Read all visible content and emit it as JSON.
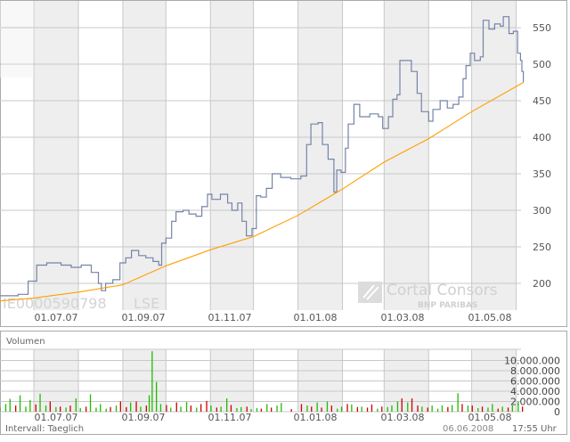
{
  "colors": {
    "price_line": "#7483a8",
    "moving_average": "#ff9f00",
    "volume_up": "#22bb00",
    "volume_down": "#cc0000",
    "band": "#eeeeee",
    "grid": "#c8c8c8"
  },
  "watermark": {
    "isin": "IE0000590798",
    "exchange": "LSE",
    "logo_main": "Cortal Consors",
    "logo_sub": "BNP PARIBAS"
  },
  "volume_panel": {
    "title": "Volumen"
  },
  "footer": {
    "interval": "Intervall: Taeglich",
    "date": "06.06.2008",
    "time": "17:55 Uhr"
  },
  "chart_data": [
    {
      "type": "line",
      "x_type": "date",
      "xlim": [
        "2007-06-07",
        "2008-06-06"
      ],
      "ylim": [
        170,
        580
      ],
      "x_ticks": [
        "01.07.07",
        "01.09.07",
        "01.11.07",
        "01.01.08",
        "01.03.08",
        "01.05.08"
      ],
      "y_ticks": [
        "200",
        "250",
        "300",
        "350",
        "400",
        "450",
        "500",
        "550"
      ],
      "grid": true,
      "series": [
        {
          "key": "price",
          "points": [
            [
              "2007-06-07",
              183
            ],
            [
              "2007-06-20",
              185
            ],
            [
              "2007-06-27",
              203
            ],
            [
              "2007-07-03",
              225
            ],
            [
              "2007-07-10",
              228
            ],
            [
              "2007-07-20",
              225
            ],
            [
              "2007-07-27",
              222
            ],
            [
              "2007-08-03",
              225
            ],
            [
              "2007-08-10",
              215
            ],
            [
              "2007-08-15",
              200
            ],
            [
              "2007-08-17",
              190
            ],
            [
              "2007-08-20",
              200
            ],
            [
              "2007-08-25",
              205
            ],
            [
              "2007-08-30",
              228
            ],
            [
              "2007-09-03",
              235
            ],
            [
              "2007-09-07",
              245
            ],
            [
              "2007-09-12",
              238
            ],
            [
              "2007-09-17",
              235
            ],
            [
              "2007-09-22",
              230
            ],
            [
              "2007-09-26",
              225
            ],
            [
              "2007-09-28",
              255
            ],
            [
              "2007-10-01",
              262
            ],
            [
              "2007-10-05",
              285
            ],
            [
              "2007-10-08",
              298
            ],
            [
              "2007-10-13",
              300
            ],
            [
              "2007-10-17",
              295
            ],
            [
              "2007-10-22",
              292
            ],
            [
              "2007-10-26",
              305
            ],
            [
              "2007-10-30",
              322
            ],
            [
              "2007-11-02",
              315
            ],
            [
              "2007-11-08",
              322
            ],
            [
              "2007-11-13",
              310
            ],
            [
              "2007-11-16",
              300
            ],
            [
              "2007-11-20",
              310
            ],
            [
              "2007-11-23",
              285
            ],
            [
              "2007-11-26",
              265
            ],
            [
              "2007-11-30",
              275
            ],
            [
              "2007-12-03",
              320
            ],
            [
              "2007-12-06",
              318
            ],
            [
              "2007-12-10",
              330
            ],
            [
              "2007-12-14",
              350
            ],
            [
              "2007-12-20",
              345
            ],
            [
              "2007-12-27",
              343
            ],
            [
              "2008-01-03",
              347
            ],
            [
              "2008-01-07",
              390
            ],
            [
              "2008-01-10",
              418
            ],
            [
              "2008-01-15",
              420
            ],
            [
              "2008-01-18",
              390
            ],
            [
              "2008-01-22",
              370
            ],
            [
              "2008-01-26",
              325
            ],
            [
              "2008-01-28",
              355
            ],
            [
              "2008-01-31",
              352
            ],
            [
              "2008-02-03",
              385
            ],
            [
              "2008-02-05",
              418
            ],
            [
              "2008-02-09",
              445
            ],
            [
              "2008-02-13",
              428
            ],
            [
              "2008-02-20",
              432
            ],
            [
              "2008-02-26",
              428
            ],
            [
              "2008-02-29",
              412
            ],
            [
              "2008-03-04",
              428
            ],
            [
              "2008-03-07",
              452
            ],
            [
              "2008-03-10",
              458
            ],
            [
              "2008-03-12",
              505
            ],
            [
              "2008-03-17",
              505
            ],
            [
              "2008-03-20",
              490
            ],
            [
              "2008-03-24",
              460
            ],
            [
              "2008-03-27",
              435
            ],
            [
              "2008-04-01",
              422
            ],
            [
              "2008-04-04",
              438
            ],
            [
              "2008-04-09",
              450
            ],
            [
              "2008-04-14",
              440
            ],
            [
              "2008-04-18",
              445
            ],
            [
              "2008-04-22",
              455
            ],
            [
              "2008-04-25",
              480
            ],
            [
              "2008-04-27",
              498
            ],
            [
              "2008-04-30",
              515
            ],
            [
              "2008-05-03",
              505
            ],
            [
              "2008-05-07",
              510
            ],
            [
              "2008-05-09",
              560
            ],
            [
              "2008-05-13",
              548
            ],
            [
              "2008-05-17",
              555
            ],
            [
              "2008-05-21",
              552
            ],
            [
              "2008-05-23",
              565
            ],
            [
              "2008-05-27",
              542
            ],
            [
              "2008-05-30",
              545
            ],
            [
              "2008-06-02",
              515
            ],
            [
              "2008-06-04",
              505
            ],
            [
              "2008-06-05",
              490
            ],
            [
              "2008-06-06",
              475
            ]
          ]
        },
        {
          "key": "moving_average",
          "points": [
            [
              "2007-06-07",
              176
            ],
            [
              "2007-07-01",
              180
            ],
            [
              "2007-08-01",
              188
            ],
            [
              "2007-09-01",
              198
            ],
            [
              "2007-10-01",
              224
            ],
            [
              "2007-11-01",
              246
            ],
            [
              "2007-12-01",
              264
            ],
            [
              "2008-01-01",
              293
            ],
            [
              "2008-02-01",
              329
            ],
            [
              "2008-03-01",
              366
            ],
            [
              "2008-04-01",
              398
            ],
            [
              "2008-05-01",
              435
            ],
            [
              "2008-06-06",
              475
            ]
          ]
        }
      ]
    },
    {
      "type": "bar",
      "x_type": "date",
      "ylim": [
        0,
        12000000
      ],
      "x_ticks": [
        "01.07.07",
        "01.09.07",
        "01.11.07",
        "01.01.08",
        "01.03.08",
        "01.05.08"
      ],
      "y_ticks": [
        "0",
        "2.000.000",
        "4.000.000",
        "6.000.000",
        "8.000.000",
        "10.000.000"
      ],
      "grid": true,
      "bars": [
        [
          "2007-06-07",
          0.8,
          "up"
        ],
        [
          "2007-06-11",
          1.5,
          "up"
        ],
        [
          "2007-06-14",
          2.5,
          "up"
        ],
        [
          "2007-06-18",
          1.2,
          "down"
        ],
        [
          "2007-06-21",
          3.2,
          "up"
        ],
        [
          "2007-06-25",
          1.0,
          "up"
        ],
        [
          "2007-06-28",
          2.3,
          "up"
        ],
        [
          "2007-07-02",
          1.4,
          "down"
        ],
        [
          "2007-07-05",
          3.5,
          "up"
        ],
        [
          "2007-07-09",
          1.2,
          "up"
        ],
        [
          "2007-07-12",
          2.0,
          "down"
        ],
        [
          "2007-07-16",
          0.9,
          "up"
        ],
        [
          "2007-07-19",
          1.0,
          "down"
        ],
        [
          "2007-07-23",
          0.8,
          "up"
        ],
        [
          "2007-07-26",
          1.2,
          "down"
        ],
        [
          "2007-07-30",
          2.6,
          "up"
        ],
        [
          "2007-08-02",
          0.7,
          "up"
        ],
        [
          "2007-08-06",
          1.0,
          "down"
        ],
        [
          "2007-08-09",
          3.4,
          "up"
        ],
        [
          "2007-08-13",
          0.8,
          "up"
        ],
        [
          "2007-08-16",
          1.5,
          "up"
        ],
        [
          "2007-08-20",
          0.6,
          "up"
        ],
        [
          "2007-08-23",
          0.9,
          "down"
        ],
        [
          "2007-08-27",
          1.2,
          "up"
        ],
        [
          "2007-08-30",
          2.0,
          "down"
        ],
        [
          "2007-09-03",
          0.9,
          "down"
        ],
        [
          "2007-09-06",
          1.8,
          "up"
        ],
        [
          "2007-09-10",
          2.0,
          "down"
        ],
        [
          "2007-09-13",
          1.0,
          "up"
        ],
        [
          "2007-09-17",
          1.2,
          "down"
        ],
        [
          "2007-09-19",
          3.2,
          "up"
        ],
        [
          "2007-09-21",
          11.8,
          "up"
        ],
        [
          "2007-09-24",
          5.8,
          "up"
        ],
        [
          "2007-09-27",
          1.5,
          "up"
        ],
        [
          "2007-10-01",
          1.3,
          "down"
        ],
        [
          "2007-10-04",
          0.8,
          "up"
        ],
        [
          "2007-10-08",
          1.8,
          "down"
        ],
        [
          "2007-10-11",
          1.0,
          "up"
        ],
        [
          "2007-10-15",
          1.9,
          "up"
        ],
        [
          "2007-10-18",
          1.2,
          "down"
        ],
        [
          "2007-10-22",
          0.8,
          "up"
        ],
        [
          "2007-10-25",
          1.5,
          "down"
        ],
        [
          "2007-10-29",
          2.1,
          "down"
        ],
        [
          "2007-11-01",
          1.2,
          "up"
        ],
        [
          "2007-11-05",
          0.8,
          "down"
        ],
        [
          "2007-11-08",
          1.0,
          "up"
        ],
        [
          "2007-11-12",
          2.6,
          "up"
        ],
        [
          "2007-11-15",
          1.3,
          "down"
        ],
        [
          "2007-11-19",
          0.7,
          "up"
        ],
        [
          "2007-11-22",
          0.9,
          "up"
        ],
        [
          "2007-11-26",
          1.0,
          "down"
        ],
        [
          "2007-11-29",
          0.5,
          "up"
        ],
        [
          "2007-12-03",
          0.7,
          "up"
        ],
        [
          "2007-12-06",
          0.6,
          "down"
        ],
        [
          "2007-12-10",
          1.5,
          "up"
        ],
        [
          "2007-12-13",
          0.8,
          "down"
        ],
        [
          "2007-12-17",
          1.2,
          "up"
        ],
        [
          "2007-12-20",
          1.7,
          "up"
        ],
        [
          "2007-12-27",
          0.5,
          "down"
        ],
        [
          "2008-01-03",
          1.5,
          "down"
        ],
        [
          "2008-01-07",
          1.2,
          "up"
        ],
        [
          "2008-01-10",
          1.0,
          "down"
        ],
        [
          "2008-01-14",
          1.8,
          "up"
        ],
        [
          "2008-01-17",
          0.8,
          "down"
        ],
        [
          "2008-01-21",
          2.0,
          "up"
        ],
        [
          "2008-01-24",
          1.2,
          "down"
        ],
        [
          "2008-01-28",
          0.6,
          "up"
        ],
        [
          "2008-01-31",
          1.0,
          "up"
        ],
        [
          "2008-02-04",
          1.5,
          "down"
        ],
        [
          "2008-02-07",
          1.4,
          "up"
        ],
        [
          "2008-02-11",
          0.9,
          "down"
        ],
        [
          "2008-02-14",
          1.0,
          "up"
        ],
        [
          "2008-02-18",
          0.8,
          "down"
        ],
        [
          "2008-02-21",
          1.4,
          "down"
        ],
        [
          "2008-02-25",
          0.6,
          "up"
        ],
        [
          "2008-02-28",
          1.0,
          "down"
        ],
        [
          "2008-03-03",
          0.9,
          "up"
        ],
        [
          "2008-03-06",
          1.2,
          "up"
        ],
        [
          "2008-03-10",
          2.0,
          "up"
        ],
        [
          "2008-03-13",
          2.6,
          "down"
        ],
        [
          "2008-03-17",
          1.8,
          "up"
        ],
        [
          "2008-03-20",
          2.6,
          "down"
        ],
        [
          "2008-03-24",
          1.2,
          "down"
        ],
        [
          "2008-03-27",
          1.0,
          "up"
        ],
        [
          "2008-03-31",
          0.8,
          "down"
        ],
        [
          "2008-04-03",
          1.2,
          "up"
        ],
        [
          "2008-04-07",
          0.6,
          "up"
        ],
        [
          "2008-04-10",
          1.2,
          "up"
        ],
        [
          "2008-04-14",
          0.9,
          "down"
        ],
        [
          "2008-04-17",
          1.3,
          "up"
        ],
        [
          "2008-04-21",
          3.6,
          "up"
        ],
        [
          "2008-04-24",
          1.5,
          "down"
        ],
        [
          "2008-04-28",
          1.2,
          "up"
        ],
        [
          "2008-05-01",
          1.2,
          "down"
        ],
        [
          "2008-05-05",
          0.7,
          "up"
        ],
        [
          "2008-05-08",
          1.0,
          "down"
        ],
        [
          "2008-05-12",
          0.8,
          "up"
        ],
        [
          "2008-05-15",
          1.5,
          "up"
        ],
        [
          "2008-05-19",
          0.6,
          "down"
        ],
        [
          "2008-05-22",
          1.0,
          "up"
        ],
        [
          "2008-05-26",
          0.8,
          "down"
        ],
        [
          "2008-05-29",
          1.2,
          "up"
        ],
        [
          "2008-06-02",
          2.0,
          "up"
        ],
        [
          "2008-06-05",
          1.0,
          "down"
        ]
      ]
    }
  ]
}
